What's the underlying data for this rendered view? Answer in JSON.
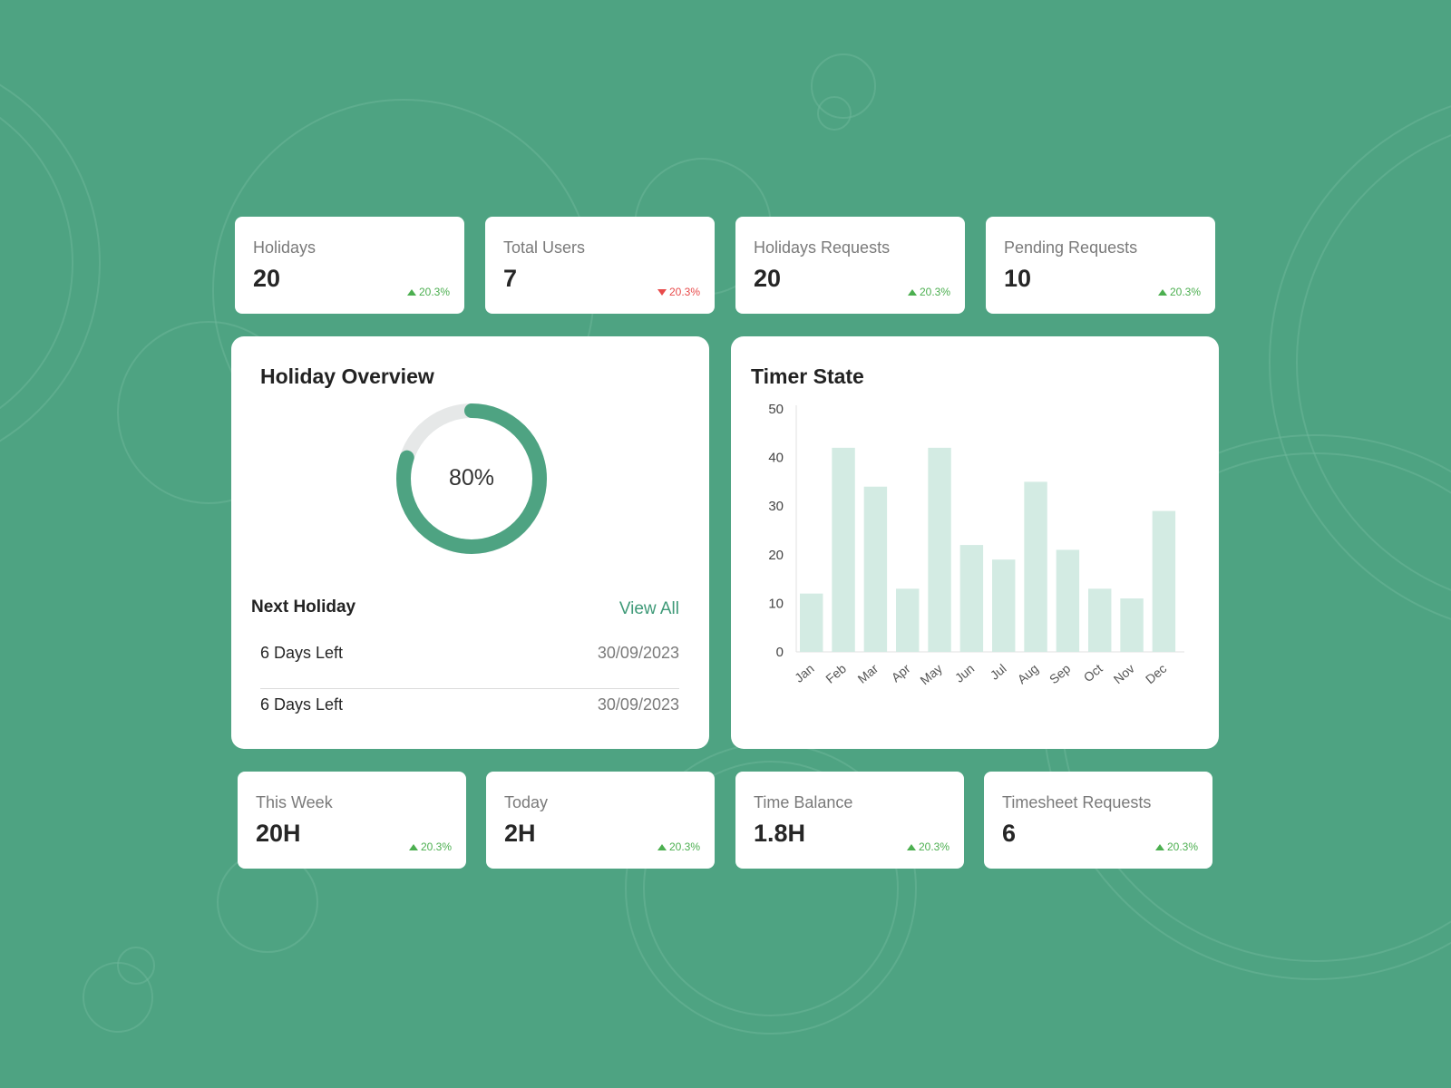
{
  "colors": {
    "background": "#4ea382",
    "accent": "#4ea382",
    "donut_track": "#e6e8e8",
    "bar_fill": "#d3ebe3",
    "trend_up": "#4caf50",
    "trend_down": "#e84b4b",
    "link": "#3f9a78"
  },
  "top_stats": [
    {
      "label": "Holidays",
      "value": "20",
      "trend": "20.3%",
      "direction": "up"
    },
    {
      "label": "Total Users",
      "value": "7",
      "trend": "20.3%",
      "direction": "down"
    },
    {
      "label": "Holidays Requests",
      "value": "20",
      "trend": "20.3%",
      "direction": "up"
    },
    {
      "label": "Pending Requests",
      "value": "10",
      "trend": "20.3%",
      "direction": "up"
    }
  ],
  "holiday_overview": {
    "title": "Holiday Overview",
    "progress_percent": 80,
    "progress_label": "80%",
    "next_holiday_title": "Next Holiday",
    "view_all_label": "View All",
    "rows": [
      {
        "days_left": "6 Days Left",
        "date": "30/09/2023"
      },
      {
        "days_left": "6 Days Left",
        "date": "30/09/2023"
      }
    ]
  },
  "timer_state": {
    "title": "Timer State"
  },
  "chart_data": {
    "type": "bar",
    "title": "Timer State",
    "categories": [
      "Jan",
      "Feb",
      "Mar",
      "Apr",
      "May",
      "Jun",
      "Jul",
      "Aug",
      "Sep",
      "Oct",
      "Nov",
      "Dec"
    ],
    "values": [
      12,
      42,
      34,
      13,
      42,
      22,
      19,
      35,
      21,
      13,
      11,
      29
    ],
    "yticks": [
      0,
      10,
      20,
      30,
      40,
      50
    ],
    "ylim": [
      0,
      50
    ],
    "grid": false,
    "legend": "none"
  },
  "bottom_stats": [
    {
      "label": "This Week",
      "value": "20H",
      "trend": "20.3%",
      "direction": "up"
    },
    {
      "label": "Today",
      "value": "2H",
      "trend": "20.3%",
      "direction": "up"
    },
    {
      "label": "Time Balance",
      "value": "1.8H",
      "trend": "20.3%",
      "direction": "up"
    },
    {
      "label": "Timesheet Requests",
      "value": "6",
      "trend": "20.3%",
      "direction": "up"
    }
  ]
}
